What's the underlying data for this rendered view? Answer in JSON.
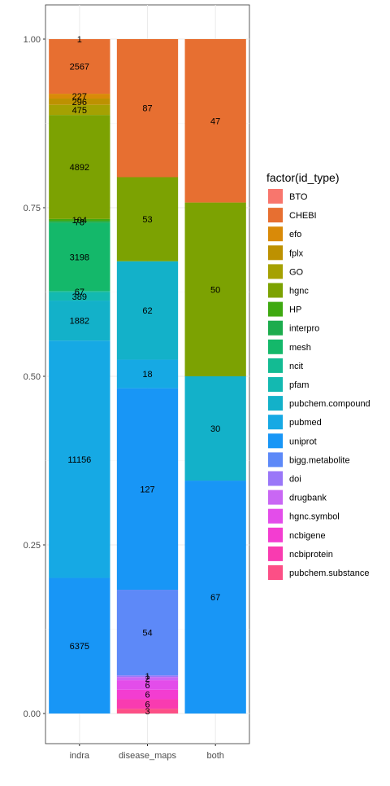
{
  "chart_data": {
    "type": "bar",
    "stacked": true,
    "normalized": true,
    "categories": [
      "indra",
      "disease_maps",
      "both"
    ],
    "ylim": [
      0,
      1
    ],
    "yticks": [
      0.0,
      0.25,
      0.5,
      0.75,
      1.0
    ],
    "ytick_labels": [
      "0.00",
      "0.25",
      "0.50",
      "0.75",
      "1.00"
    ],
    "grid": true,
    "legend_position": "right",
    "legend_title": "factor(id_type)",
    "legend": [
      {
        "name": "BTO",
        "color": "#F8766D"
      },
      {
        "name": "CHEBI",
        "color": "#E76F31"
      },
      {
        "name": "efo",
        "color": "#D98A08"
      },
      {
        "name": "fplx",
        "color": "#BD9101"
      },
      {
        "name": "GO",
        "color": "#A5A102"
      },
      {
        "name": "hgnc",
        "color": "#7CA202"
      },
      {
        "name": "HP",
        "color": "#3FA911"
      },
      {
        "name": "interpro",
        "color": "#1CAC4D"
      },
      {
        "name": "mesh",
        "color": "#14B86A"
      },
      {
        "name": "ncit",
        "color": "#13BB93"
      },
      {
        "name": "pfam",
        "color": "#13B9B1"
      },
      {
        "name": "pubchem.compound",
        "color": "#13B1C9"
      },
      {
        "name": "pubmed",
        "color": "#16A9E4"
      },
      {
        "name": "uniprot",
        "color": "#1896F6"
      },
      {
        "name": "bigg.metabolite",
        "color": "#5D89F8"
      },
      {
        "name": "doi",
        "color": "#9A77F8"
      },
      {
        "name": "drugbank",
        "color": "#C967F4"
      },
      {
        "name": "hgnc.symbol",
        "color": "#E34DEA"
      },
      {
        "name": "ncbigene",
        "color": "#F33DD1"
      },
      {
        "name": "ncbiprotein",
        "color": "#F93BB0"
      },
      {
        "name": "pubchem.substance",
        "color": "#FC4F86"
      }
    ],
    "stacks": [
      {
        "category": "indra",
        "segments": [
          {
            "type": "uniprot",
            "count": 6375,
            "label": "6375"
          },
          {
            "type": "pubmed",
            "count": 11156,
            "label": "11156"
          },
          {
            "type": "pubchem.compound",
            "count": 1882,
            "label": "1882"
          },
          {
            "type": "pfam",
            "count": 389,
            "label": "389"
          },
          {
            "type": "ncit",
            "count": 67,
            "label": "67"
          },
          {
            "type": "mesh",
            "count": 3198,
            "label": "3198"
          },
          {
            "type": "interpro",
            "count": 78,
            "label": "78"
          },
          {
            "type": "HP",
            "count": 104,
            "label": "104"
          },
          {
            "type": "hgnc",
            "count": 4892,
            "label": "4892"
          },
          {
            "type": "GO",
            "count": 475,
            "label": "475"
          },
          {
            "type": "fplx",
            "count": 296,
            "label": "296"
          },
          {
            "type": "efo",
            "count": 227,
            "label": "227"
          },
          {
            "type": "CHEBI",
            "count": 2567,
            "label": "2567"
          },
          {
            "type": "BTO",
            "count": 1,
            "label": "1"
          }
        ]
      },
      {
        "category": "disease_maps",
        "segments": [
          {
            "type": "pubchem.substance",
            "count": 3,
            "label": "3"
          },
          {
            "type": "ncbiprotein",
            "count": 6,
            "label": "6"
          },
          {
            "type": "ncbigene",
            "count": 6,
            "label": "6"
          },
          {
            "type": "hgnc.symbol",
            "count": 6,
            "label": "6"
          },
          {
            "type": "drugbank",
            "count": 2,
            "label": "2"
          },
          {
            "type": "doi",
            "count": 1,
            "label": "1"
          },
          {
            "type": "bigg.metabolite",
            "count": 54,
            "label": "54"
          },
          {
            "type": "uniprot",
            "count": 127,
            "label": "127"
          },
          {
            "type": "pubmed",
            "count": 18,
            "label": "18"
          },
          {
            "type": "pubchem.compound",
            "count": 62,
            "label": "62"
          },
          {
            "type": "hgnc",
            "count": 53,
            "label": "53"
          },
          {
            "type": "CHEBI",
            "count": 87,
            "label": "87"
          }
        ]
      },
      {
        "category": "both",
        "segments": [
          {
            "type": "uniprot",
            "count": 67,
            "label": "67"
          },
          {
            "type": "pubchem.compound",
            "count": 30,
            "label": "30"
          },
          {
            "type": "hgnc",
            "count": 50,
            "label": "50"
          },
          {
            "type": "CHEBI",
            "count": 47,
            "label": "47"
          }
        ]
      }
    ]
  }
}
